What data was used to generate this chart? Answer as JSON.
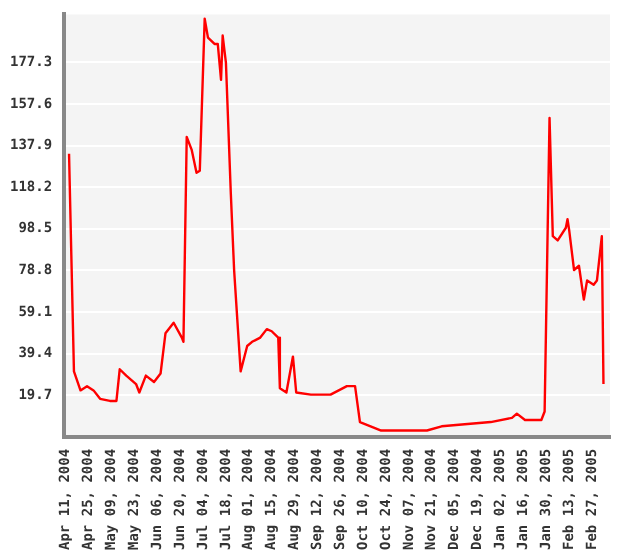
{
  "chart_data": {
    "type": "line",
    "x": [
      "2004-04-13",
      "2004-04-16",
      "2004-04-20",
      "2004-04-24",
      "2004-04-28",
      "2004-05-02",
      "2004-05-08",
      "2004-05-12",
      "2004-05-14",
      "2004-05-18",
      "2004-05-24",
      "2004-05-26",
      "2004-05-30",
      "2004-06-04",
      "2004-06-08",
      "2004-06-11",
      "2004-06-16",
      "2004-06-21",
      "2004-06-22",
      "2004-06-24",
      "2004-06-27",
      "2004-06-30",
      "2004-07-02",
      "2004-07-05",
      "2004-07-07",
      "2004-07-11",
      "2004-07-13",
      "2004-07-15",
      "2004-07-16",
      "2004-07-18",
      "2004-07-21",
      "2004-07-23",
      "2004-07-27",
      "2004-07-31",
      "2004-08-03",
      "2004-08-08",
      "2004-08-12",
      "2004-08-15",
      "2004-08-19",
      "2004-08-20",
      "2004-08-24",
      "2004-08-28",
      "2004-08-30",
      "2004-09-08",
      "2004-09-20",
      "2004-09-30",
      "2004-10-05",
      "2004-10-08",
      "2004-10-21",
      "2004-11-02",
      "2004-11-18",
      "2004-11-27",
      "2004-12-27",
      "2005-01-09",
      "2005-01-12",
      "2005-01-17",
      "2005-01-27",
      "2005-01-29",
      "2005-02-01",
      "2005-02-03",
      "2005-02-06",
      "2005-02-11",
      "2005-02-12",
      "2005-02-13",
      "2005-02-16",
      "2005-02-19",
      "2005-02-22",
      "2005-02-24",
      "2005-02-28",
      "2005-03-02",
      "2005-03-05",
      "2005-03-06"
    ],
    "series": [
      {
        "color": "#ff0000",
        "values": [
          134,
          31,
          22,
          24,
          22,
          18,
          17,
          17,
          32,
          29,
          25,
          21,
          29,
          26,
          30,
          49,
          54,
          47,
          45,
          142,
          136,
          125,
          126,
          198,
          189,
          186,
          186,
          169,
          190,
          177,
          115,
          79,
          31,
          43,
          45,
          47,
          51,
          50,
          47,
          23,
          21,
          38,
          21,
          20,
          20,
          24,
          24,
          7,
          3,
          3,
          3,
          5,
          7,
          9,
          11,
          8,
          8,
          12,
          151,
          95,
          93,
          99,
          103,
          98,
          79,
          81,
          65,
          74,
          72,
          74,
          95,
          25
        ]
      }
    ],
    "xlim": [
      "2004-04-10",
      "2005-03-10"
    ],
    "xticks": [
      {
        "value": "2004-04-11",
        "label": "Apr 11, 2004"
      },
      {
        "value": "2004-04-25",
        "label": "Apr 25, 2004"
      },
      {
        "value": "2004-05-09",
        "label": "May 09, 2004"
      },
      {
        "value": "2004-05-23",
        "label": "May 23, 2004"
      },
      {
        "value": "2004-06-06",
        "label": "Jun 06, 2004"
      },
      {
        "value": "2004-06-20",
        "label": "Jun 20, 2004"
      },
      {
        "value": "2004-07-04",
        "label": "Jul 04, 2004"
      },
      {
        "value": "2004-07-18",
        "label": "Jul 18, 2004"
      },
      {
        "value": "2004-08-01",
        "label": "Aug 01, 2004"
      },
      {
        "value": "2004-08-15",
        "label": "Aug 15, 2004"
      },
      {
        "value": "2004-08-29",
        "label": "Aug 29, 2004"
      },
      {
        "value": "2004-09-12",
        "label": "Sep 12, 2004"
      },
      {
        "value": "2004-09-26",
        "label": "Sep 26, 2004"
      },
      {
        "value": "2004-10-10",
        "label": "Oct 10, 2004"
      },
      {
        "value": "2004-10-24",
        "label": "Oct 24, 2004"
      },
      {
        "value": "2004-11-07",
        "label": "Nov 07, 2004"
      },
      {
        "value": "2004-11-21",
        "label": "Nov 21, 2004"
      },
      {
        "value": "2004-12-05",
        "label": "Dec 05, 2004"
      },
      {
        "value": "2004-12-19",
        "label": "Dec 19, 2004"
      },
      {
        "value": "2005-01-02",
        "label": "Jan 02, 2005"
      },
      {
        "value": "2005-01-16",
        "label": "Jan 16, 2005"
      },
      {
        "value": "2005-01-30",
        "label": "Jan 30, 2005"
      },
      {
        "value": "2005-02-13",
        "label": "Feb 13, 2005"
      },
      {
        "value": "2005-02-27",
        "label": "Feb 27, 2005"
      }
    ],
    "ylim": [
      0,
      200
    ],
    "yticks": [
      19.7,
      39.4,
      59.1,
      78.8,
      98.5,
      118.2,
      137.9,
      157.6,
      177.3
    ],
    "grid": "y",
    "marker": "none",
    "line_style": "solid"
  }
}
